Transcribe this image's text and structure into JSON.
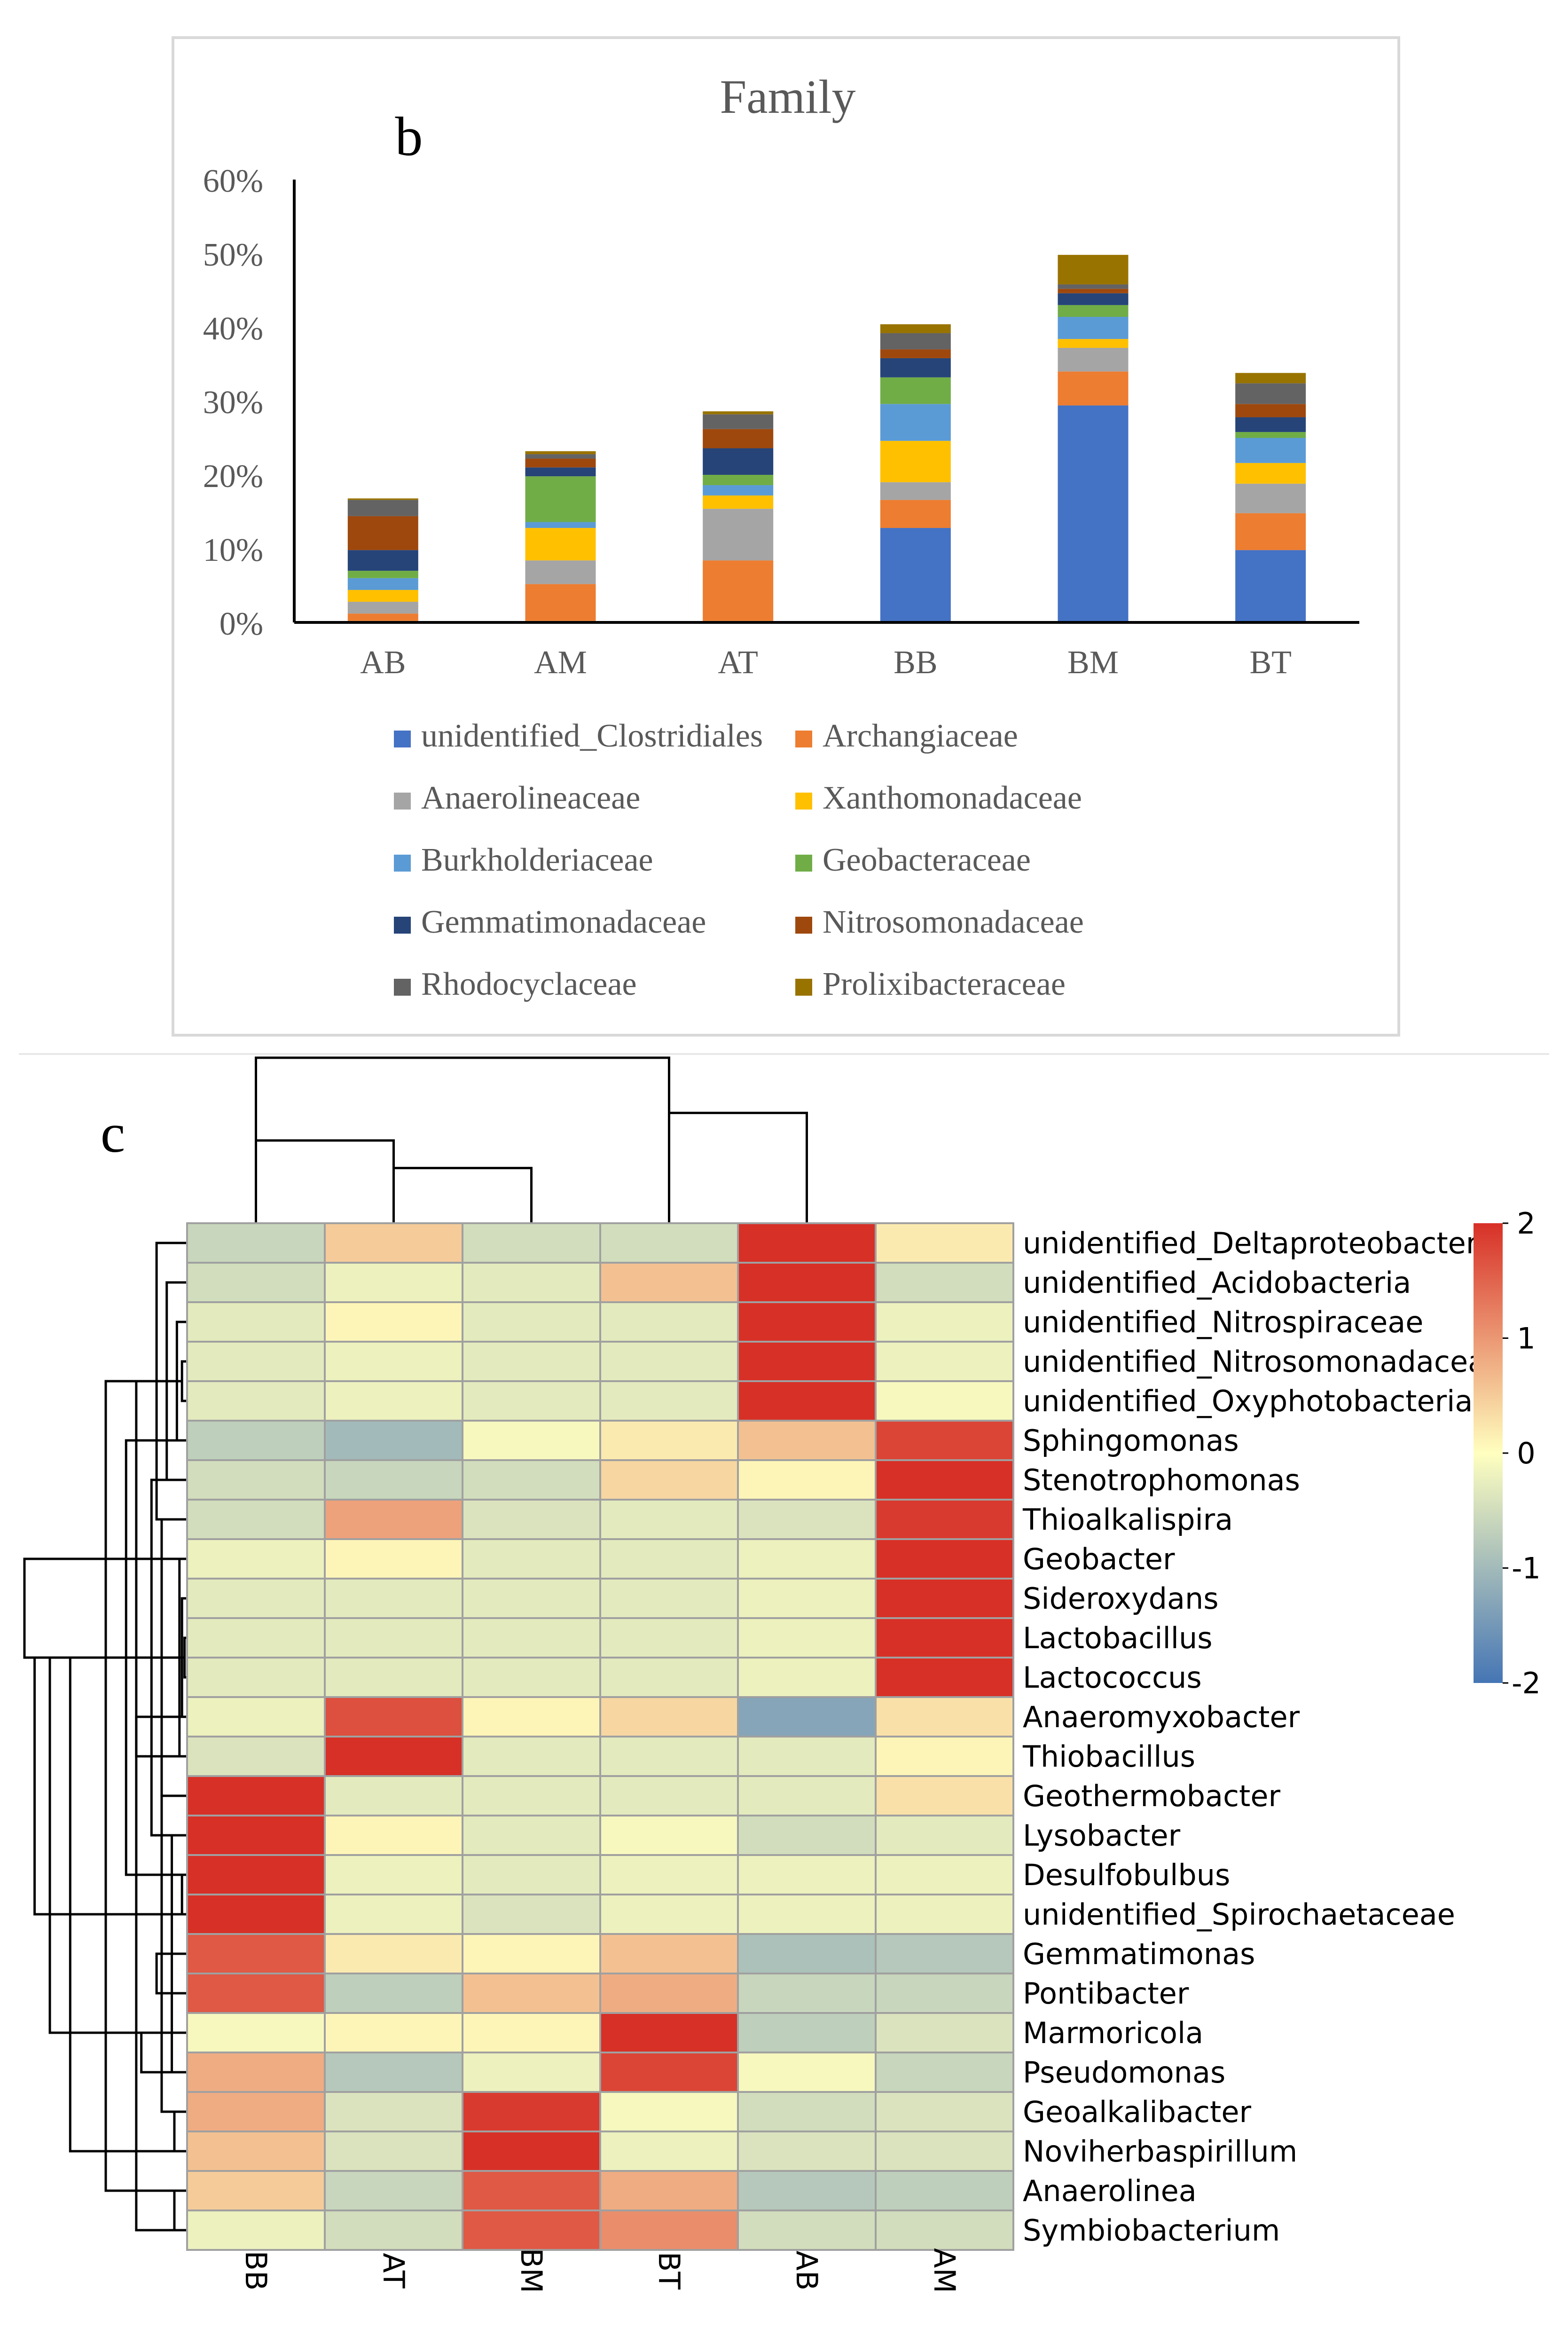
{
  "chart_data": [
    {
      "type": "bar",
      "stacked": true,
      "panel_label": "b",
      "title": "Family",
      "xlabel": "",
      "ylabel": "",
      "ylim": [
        0,
        60
      ],
      "y_ticks": [
        "0%",
        "10%",
        "20%",
        "30%",
        "40%",
        "50%",
        "60%"
      ],
      "y_tick_values": [
        0,
        10,
        20,
        30,
        40,
        50,
        60
      ],
      "legend_position": "bottom",
      "categories": [
        "AB",
        "AM",
        "AT",
        "BB",
        "BM",
        "BT"
      ],
      "series": [
        {
          "name": "unidentified_Clostridiales",
          "color": "#4472C4",
          "values": [
            0.2,
            0.2,
            0.2,
            12.8,
            29.4,
            9.8
          ]
        },
        {
          "name": "Archangiaceae",
          "color": "#ED7D31",
          "values": [
            1.0,
            5.0,
            8.2,
            3.8,
            4.6,
            5.0
          ]
        },
        {
          "name": "Anaerolineaceae",
          "color": "#A5A5A5",
          "values": [
            1.6,
            3.2,
            7.0,
            2.4,
            3.2,
            4.0
          ]
        },
        {
          "name": "Xanthomonadaceae",
          "color": "#FFC000",
          "values": [
            1.6,
            4.4,
            1.8,
            5.6,
            1.2,
            2.8
          ]
        },
        {
          "name": "Burkholderiaceae",
          "color": "#5B9BD5",
          "values": [
            1.6,
            0.8,
            1.4,
            5.0,
            3.0,
            3.4
          ]
        },
        {
          "name": "Geobacteraceae",
          "color": "#70AD47",
          "values": [
            1.0,
            6.2,
            1.4,
            3.6,
            1.6,
            0.8
          ]
        },
        {
          "name": "Gemmatimonadaceae",
          "color": "#264478",
          "values": [
            2.8,
            1.2,
            3.6,
            2.6,
            1.6,
            2.0
          ]
        },
        {
          "name": "Nitrosomonadaceae",
          "color": "#9E480E",
          "values": [
            4.6,
            1.2,
            2.6,
            1.2,
            0.6,
            1.8
          ]
        },
        {
          "name": "Rhodocyclaceae",
          "color": "#636363",
          "values": [
            2.2,
            0.6,
            2.0,
            2.2,
            0.6,
            2.8
          ]
        },
        {
          "name": "Prolixibacteraceae",
          "color": "#997300",
          "values": [
            0.2,
            0.4,
            0.4,
            1.2,
            4.0,
            1.4
          ]
        }
      ]
    },
    {
      "type": "heatmap",
      "panel_label": "c",
      "columns": [
        "BB",
        "AT",
        "BM",
        "BT",
        "AB",
        "AM"
      ],
      "rows": [
        "unidentified_Deltaproteobacteria",
        "unidentified_Acidobacteria",
        "unidentified_Nitrospiraceae",
        "unidentified_Nitrosomonadaceae",
        "unidentified_Oxyphotobacteria",
        "Sphingomonas",
        "Stenotrophomonas",
        "Thioalkalispira",
        "Geobacter",
        "Sideroxydans",
        "Lactobacillus",
        "Lactococcus",
        "Anaeromyxobacter",
        "Thiobacillus",
        "Geothermobacter",
        "Lysobacter",
        "Desulfobulbus",
        "unidentified_Spirochaetaceae",
        "Gemmatimonas",
        "Pontibacter",
        "Marmoricola",
        "Pseudomonas",
        "Geoalkalibacter",
        "Noviherbaspirillum",
        "Anaerolinea",
        "Symbiobacterium"
      ],
      "values": [
        [
          -0.6,
          0.5,
          -0.5,
          -0.5,
          2.0,
          0.2
        ],
        [
          -0.5,
          -0.2,
          -0.3,
          0.6,
          2.0,
          -0.5
        ],
        [
          -0.3,
          0.1,
          -0.3,
          -0.3,
          2.0,
          -0.2
        ],
        [
          -0.3,
          -0.2,
          -0.3,
          -0.3,
          2.0,
          -0.2
        ],
        [
          -0.3,
          -0.2,
          -0.3,
          -0.3,
          2.0,
          -0.1
        ],
        [
          -0.7,
          -1.0,
          -0.1,
          0.2,
          0.6,
          1.8
        ],
        [
          -0.5,
          -0.6,
          -0.5,
          0.4,
          0.1,
          2.0
        ],
        [
          -0.5,
          0.9,
          -0.4,
          -0.3,
          -0.4,
          1.9
        ],
        [
          -0.2,
          0.1,
          -0.3,
          -0.3,
          -0.2,
          2.0
        ],
        [
          -0.3,
          -0.3,
          -0.3,
          -0.3,
          -0.2,
          2.0
        ],
        [
          -0.3,
          -0.3,
          -0.3,
          -0.3,
          -0.2,
          2.0
        ],
        [
          -0.3,
          -0.3,
          -0.3,
          -0.3,
          -0.2,
          2.0
        ],
        [
          -0.2,
          1.7,
          0.1,
          0.4,
          -1.3,
          0.3
        ],
        [
          -0.4,
          2.0,
          -0.3,
          -0.3,
          -0.3,
          0.1
        ],
        [
          2.0,
          -0.3,
          -0.3,
          -0.3,
          -0.3,
          0.3
        ],
        [
          2.0,
          0.1,
          -0.3,
          -0.1,
          -0.5,
          -0.3
        ],
        [
          2.0,
          -0.2,
          -0.3,
          -0.2,
          -0.2,
          -0.2
        ],
        [
          2.0,
          -0.2,
          -0.4,
          -0.2,
          -0.2,
          -0.2
        ],
        [
          1.6,
          0.2,
          0.1,
          0.6,
          -0.9,
          -0.8
        ],
        [
          1.6,
          -0.7,
          0.6,
          0.8,
          -0.6,
          -0.6
        ],
        [
          -0.1,
          0.1,
          0.1,
          2.0,
          -0.7,
          -0.4
        ],
        [
          0.8,
          -0.8,
          -0.2,
          1.8,
          -0.1,
          -0.6
        ],
        [
          0.8,
          -0.4,
          1.9,
          -0.1,
          -0.5,
          -0.4
        ],
        [
          0.6,
          -0.4,
          2.0,
          -0.2,
          -0.4,
          -0.4
        ],
        [
          0.5,
          -0.6,
          1.6,
          0.8,
          -0.8,
          -0.7
        ],
        [
          -0.2,
          -0.5,
          1.6,
          1.1,
          -0.5,
          -0.5
        ]
      ],
      "color_scale": {
        "min": -2,
        "max": 2,
        "low_color": "#4575B4",
        "mid_color": "#FFFFBF",
        "high_color": "#D73027"
      },
      "colorbar_ticks": [
        "2",
        "1",
        "0",
        "-1",
        "-2"
      ],
      "colorbar_tick_values": [
        2,
        1,
        0,
        -1,
        -2
      ],
      "column_dendrogram": [
        [
          1,
          2,
          4
        ],
        [
          0,
          1,
          6
        ],
        [
          3,
          4,
          8
        ],
        [
          0,
          3,
          12
        ]
      ],
      "row_dendrogram_merges": [
        [
          3,
          4,
          0.1
        ],
        [
          2,
          5,
          0.2
        ],
        [
          1,
          6,
          0.4
        ],
        [
          0,
          7,
          0.6
        ],
        [
          10,
          11,
          0.05
        ],
        [
          9,
          12,
          0.1
        ],
        [
          8,
          13,
          0.15
        ],
        [
          7,
          14,
          0.5
        ],
        [
          6,
          15,
          0.7
        ],
        [
          5,
          16,
          1.2
        ],
        [
          12,
          13,
          1.0
        ],
        [
          16,
          17,
          0.1
        ],
        [
          15,
          21,
          0.3
        ],
        [
          14,
          22,
          0.5
        ],
        [
          18,
          19,
          0.6
        ],
        [
          20,
          21,
          0.9
        ],
        [
          22,
          23,
          0.25
        ],
        [
          24,
          25,
          0.25
        ],
        [
          26,
          27,
          0.8
        ],
        [
          25,
          28,
          1.0
        ],
        [
          24,
          29,
          1.6
        ],
        [
          23,
          30,
          2.3
        ],
        [
          20,
          31,
          2.7
        ],
        [
          17,
          32,
          3.0
        ],
        [
          8,
          33,
          3.2
        ]
      ]
    }
  ]
}
